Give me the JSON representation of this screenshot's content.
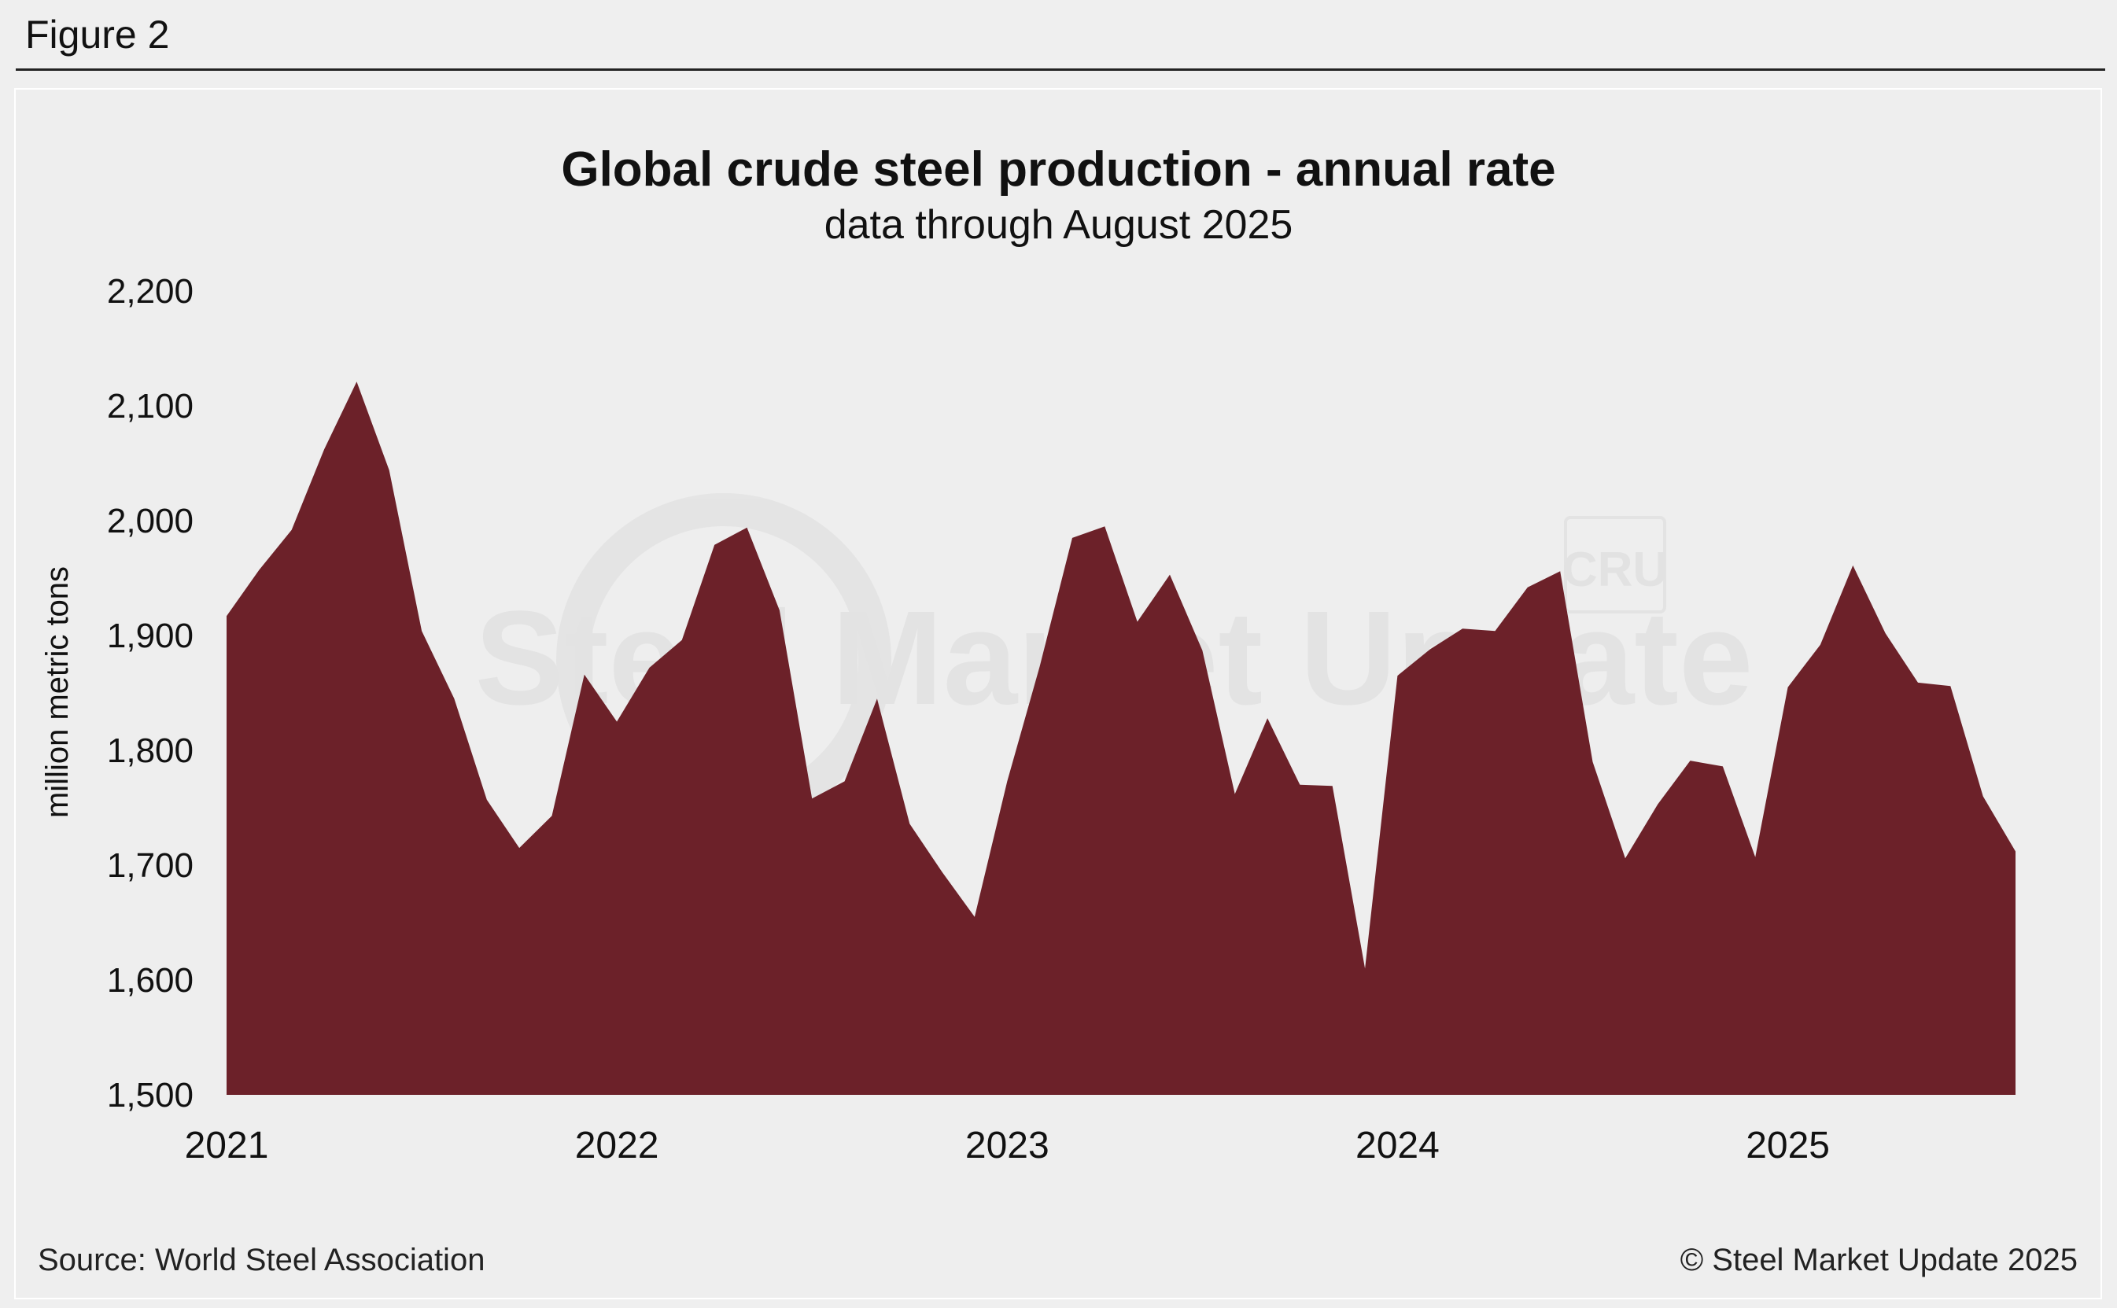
{
  "figure_label": "Figure 2",
  "footer": {
    "source": "Source: World Steel Association",
    "copyright": "© Steel Market Update 2025"
  },
  "watermark": {
    "brand": "Steel Market Update",
    "logo": "CRU"
  },
  "colors": {
    "area_fill": "#6c2129",
    "background": "#efefef"
  },
  "chart_data": {
    "type": "area",
    "title": "Global crude steel production - annual rate",
    "subtitle": "data through August 2025",
    "xlabel": "",
    "ylabel": "million metric tons",
    "ylim": [
      1500,
      2200
    ],
    "yticks": [
      1500,
      1600,
      1700,
      1800,
      1900,
      2000,
      2100,
      2200
    ],
    "ytick_labels": [
      "1,500",
      "1,600",
      "1,700",
      "1,800",
      "1,900",
      "2,000",
      "2,100",
      "2,200"
    ],
    "xticks": [
      0,
      12,
      24,
      36,
      48
    ],
    "xtick_labels": [
      "2021",
      "2022",
      "2023",
      "2024",
      "2025"
    ],
    "x_months": [
      "Jan-21",
      "Feb-21",
      "Mar-21",
      "Apr-21",
      "May-21",
      "Jun-21",
      "Jul-21",
      "Aug-21",
      "Sep-21",
      "Oct-21",
      "Nov-21",
      "Dec-21",
      "Jan-22",
      "Feb-22",
      "Mar-22",
      "Apr-22",
      "May-22",
      "Jun-22",
      "Jul-22",
      "Aug-22",
      "Sep-22",
      "Oct-22",
      "Nov-22",
      "Dec-22",
      "Jan-23",
      "Feb-23",
      "Mar-23",
      "Apr-23",
      "May-23",
      "Jun-23",
      "Jul-23",
      "Aug-23",
      "Sep-23",
      "Oct-23",
      "Nov-23",
      "Dec-23",
      "Jan-24",
      "Feb-24",
      "Mar-24",
      "Apr-24",
      "May-24",
      "Jun-24",
      "Jul-24",
      "Aug-24",
      "Sep-24",
      "Oct-24",
      "Nov-24",
      "Dec-24",
      "Jan-25",
      "Feb-25",
      "Mar-25",
      "Apr-25",
      "May-25",
      "Jun-25",
      "Jul-25",
      "Aug-25"
    ],
    "series": [
      {
        "name": "Annual rate",
        "values": [
          1917,
          1957,
          1992,
          2062,
          2121,
          2044,
          1904,
          1845,
          1757,
          1715,
          1743,
          1866,
          1825,
          1872,
          1896,
          1979,
          1994,
          1922,
          1758,
          1773,
          1845,
          1736,
          1694,
          1655,
          1773,
          1873,
          1985,
          1995,
          1912,
          1953,
          1887,
          1762,
          1828,
          1770,
          1769,
          1610,
          1865,
          1888,
          1906,
          1904,
          1942,
          1956,
          1790,
          1706,
          1753,
          1791,
          1786,
          1707,
          1855,
          1892,
          1961,
          1902,
          1859,
          1856,
          1760,
          1712
        ]
      }
    ]
  }
}
